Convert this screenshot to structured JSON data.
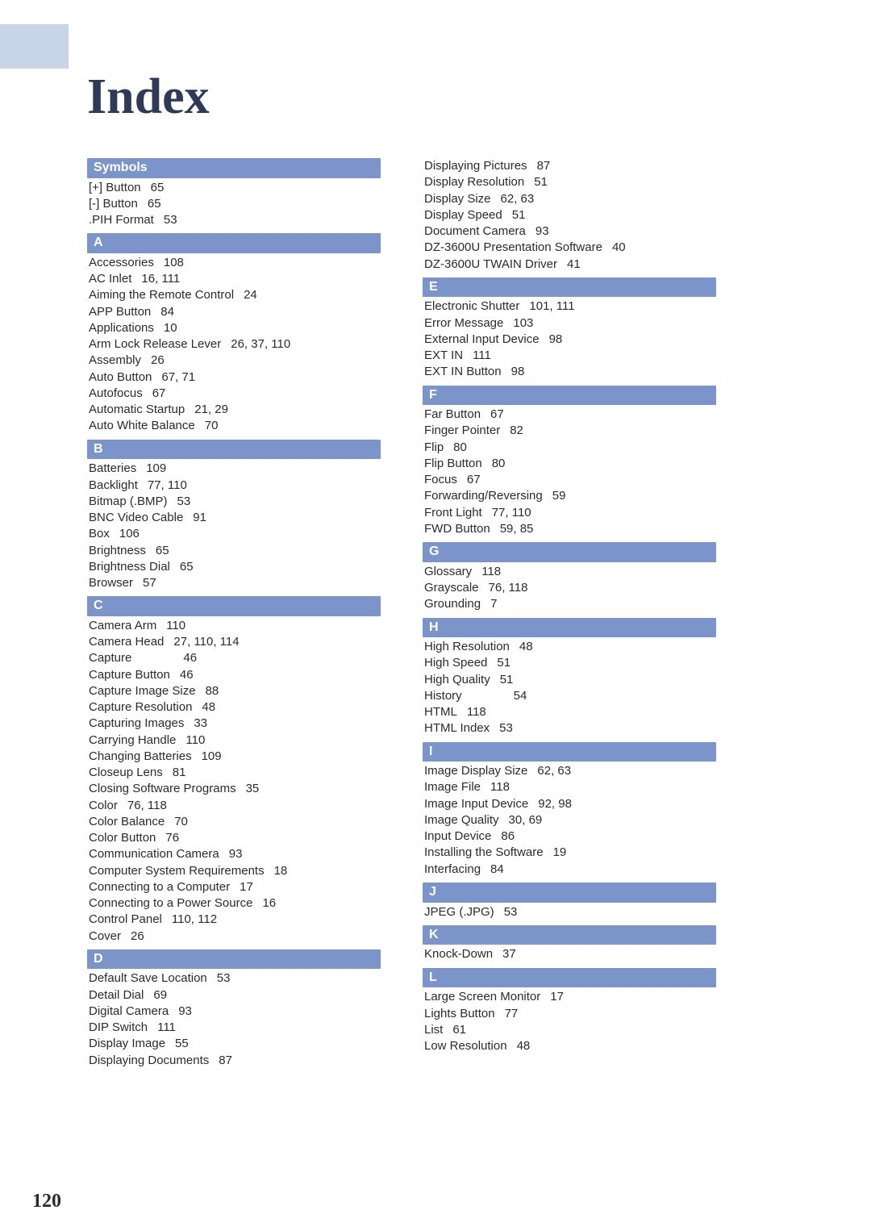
{
  "pageTitle": "Index",
  "pageNumber": "120",
  "colors": {
    "section_bg": "#7b94c9",
    "section_fg": "#ffffff",
    "title_color": "#2e3a58",
    "body_color": "#2b2b2b",
    "top_stripe": "#c8d4ea",
    "page_bg": "#ffffff"
  },
  "columns": [
    {
      "sections": [
        {
          "letter": "Symbols",
          "entries": [
            {
              "topic": "[+] Button",
              "pages": "65"
            },
            {
              "topic": "[-] Button",
              "pages": "65"
            },
            {
              "topic": ".PIH Format",
              "pages": "53"
            }
          ]
        },
        {
          "letter": "A",
          "entries": [
            {
              "topic": "Accessories",
              "pages": "108"
            },
            {
              "topic": "AC Inlet",
              "pages": "16, 111"
            },
            {
              "topic": "Aiming the Remote Control",
              "pages": "24"
            },
            {
              "topic": "APP Button",
              "pages": "84"
            },
            {
              "topic": "Applications",
              "pages": "10"
            },
            {
              "topic": "Arm Lock Release Lever",
              "pages": "26, 37, 110"
            },
            {
              "topic": "Assembly",
              "pages": "26"
            },
            {
              "topic": "Auto Button",
              "pages": "67, 71"
            },
            {
              "topic": "Autofocus",
              "pages": "67"
            },
            {
              "topic": "Automatic Startup",
              "pages": "21, 29"
            },
            {
              "topic": "Auto White Balance",
              "pages": "70"
            }
          ]
        },
        {
          "letter": "B",
          "entries": [
            {
              "topic": "Batteries",
              "pages": "109"
            },
            {
              "topic": "Backlight",
              "pages": "77, 110"
            },
            {
              "topic": "Bitmap (.BMP)",
              "pages": "53"
            },
            {
              "topic": "BNC Video Cable",
              "pages": "91"
            },
            {
              "topic": "Box",
              "pages": "106"
            },
            {
              "topic": "Brightness",
              "pages": "65"
            },
            {
              "topic": "Brightness Dial",
              "pages": "65"
            },
            {
              "topic": "Browser",
              "pages": "57"
            }
          ]
        },
        {
          "letter": "C",
          "entries": [
            {
              "topic": "Camera Arm",
              "pages": "110"
            },
            {
              "topic": "Camera Head",
              "pages": "27, 110, 114"
            },
            {
              "topic": "Capture",
              "pages": "46",
              "wide": true
            },
            {
              "topic": "Capture Button",
              "pages": "46"
            },
            {
              "topic": "Capture Image Size",
              "pages": "88"
            },
            {
              "topic": "Capture Resolution",
              "pages": "48"
            },
            {
              "topic": "Capturing Images",
              "pages": "33"
            },
            {
              "topic": "Carrying Handle",
              "pages": "110"
            },
            {
              "topic": "Changing Batteries",
              "pages": "109"
            },
            {
              "topic": "Closeup Lens",
              "pages": "81"
            },
            {
              "topic": "Closing Software Programs",
              "pages": "35"
            },
            {
              "topic": "Color",
              "pages": "76, 118"
            },
            {
              "topic": "Color Balance",
              "pages": "70"
            },
            {
              "topic": "Color Button",
              "pages": "76"
            },
            {
              "topic": "Communication Camera",
              "pages": "93"
            },
            {
              "topic": "Computer System Requirements",
              "pages": "18"
            },
            {
              "topic": "Connecting to a Computer",
              "pages": "17"
            },
            {
              "topic": "Connecting to a Power Source",
              "pages": "16"
            },
            {
              "topic": "Control Panel",
              "pages": "110, 112"
            },
            {
              "topic": "Cover",
              "pages": "26"
            }
          ]
        },
        {
          "letter": "D",
          "entries": [
            {
              "topic": "Default Save Location",
              "pages": "53"
            },
            {
              "topic": "Detail Dial",
              "pages": "69"
            },
            {
              "topic": "Digital Camera",
              "pages": "93"
            },
            {
              "topic": "DIP Switch",
              "pages": "111"
            },
            {
              "topic": "Display Image",
              "pages": "55"
            },
            {
              "topic": "Displaying Documents",
              "pages": "87"
            }
          ]
        }
      ]
    },
    {
      "sections": [
        {
          "letter": null,
          "entries": [
            {
              "topic": "Displaying Pictures",
              "pages": "87"
            },
            {
              "topic": "Display Resolution",
              "pages": "51"
            },
            {
              "topic": "Display Size",
              "pages": "62, 63"
            },
            {
              "topic": "Display Speed",
              "pages": "51"
            },
            {
              "topic": "Document Camera",
              "pages": "93"
            },
            {
              "topic": "DZ-3600U Presentation Software",
              "pages": "40"
            },
            {
              "topic": "DZ-3600U TWAIN Driver",
              "pages": "41"
            }
          ]
        },
        {
          "letter": "E",
          "entries": [
            {
              "topic": "Electronic Shutter",
              "pages": "101, 111"
            },
            {
              "topic": "Error Message",
              "pages": "103"
            },
            {
              "topic": "External Input Device",
              "pages": "98"
            },
            {
              "topic": "EXT IN",
              "pages": "111"
            },
            {
              "topic": "EXT IN Button",
              "pages": "98"
            }
          ]
        },
        {
          "letter": "F",
          "entries": [
            {
              "topic": "Far Button",
              "pages": "67"
            },
            {
              "topic": "Finger Pointer",
              "pages": "82"
            },
            {
              "topic": "Flip",
              "pages": "80"
            },
            {
              "topic": "Flip Button",
              "pages": "80"
            },
            {
              "topic": "Focus",
              "pages": "67"
            },
            {
              "topic": "Forwarding/Reversing",
              "pages": "59"
            },
            {
              "topic": "Front Light",
              "pages": "77, 110"
            },
            {
              "topic": "FWD Button",
              "pages": "59, 85"
            }
          ]
        },
        {
          "letter": "G",
          "entries": [
            {
              "topic": "Glossary",
              "pages": "118"
            },
            {
              "topic": "Grayscale",
              "pages": "76, 118"
            },
            {
              "topic": "Grounding",
              "pages": "7"
            }
          ]
        },
        {
          "letter": "H",
          "entries": [
            {
              "topic": "High Resolution",
              "pages": "48"
            },
            {
              "topic": "High Speed",
              "pages": "51"
            },
            {
              "topic": "High Quality",
              "pages": "51"
            },
            {
              "topic": "History",
              "pages": "54",
              "wide": true
            },
            {
              "topic": "HTML",
              "pages": "118"
            },
            {
              "topic": "HTML Index",
              "pages": "53"
            }
          ]
        },
        {
          "letter": "I",
          "entries": [
            {
              "topic": "Image Display Size",
              "pages": "62, 63"
            },
            {
              "topic": "Image File",
              "pages": "118"
            },
            {
              "topic": "Image Input Device",
              "pages": "92, 98"
            },
            {
              "topic": "Image Quality",
              "pages": "30, 69"
            },
            {
              "topic": "Input Device",
              "pages": "86"
            },
            {
              "topic": "Installing the Software",
              "pages": "19"
            },
            {
              "topic": "Interfacing",
              "pages": "84"
            }
          ]
        },
        {
          "letter": "J",
          "entries": [
            {
              "topic": "JPEG (.JPG)",
              "pages": "53"
            }
          ]
        },
        {
          "letter": "K",
          "entries": [
            {
              "topic": "Knock-Down",
              "pages": "37"
            }
          ]
        },
        {
          "letter": "L",
          "entries": [
            {
              "topic": "Large Screen Monitor",
              "pages": "17"
            },
            {
              "topic": "Lights Button",
              "pages": "77"
            },
            {
              "topic": "List",
              "pages": "61"
            },
            {
              "topic": "Low Resolution",
              "pages": "48"
            }
          ]
        }
      ]
    }
  ]
}
